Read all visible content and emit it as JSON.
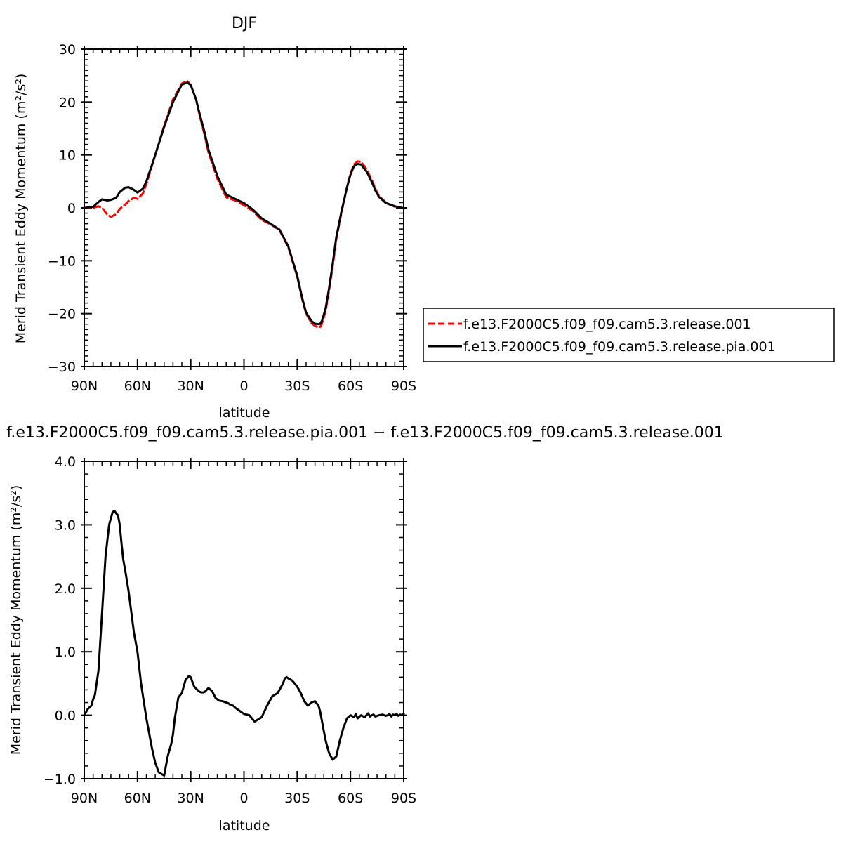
{
  "chart_data": [
    {
      "type": "line",
      "title": "DJF",
      "xlabel": "latitude",
      "ylabel": "Merid Transient Eddy Momentum (m²/s²)",
      "x_unit": "degrees latitude (positive = N, negative = S)",
      "xlim": [
        90,
        -90
      ],
      "ylim": [
        -30,
        30
      ],
      "x_ticks": [
        90,
        60,
        30,
        0,
        -30,
        -60,
        -90
      ],
      "x_tick_labels": [
        "90N",
        "60N",
        "30N",
        "0",
        "30S",
        "60S",
        "90S"
      ],
      "y_ticks": [
        -30,
        -20,
        -10,
        0,
        10,
        20,
        30
      ],
      "y_tick_labels": [
        "−30",
        "−20",
        "−10",
        "0",
        "10",
        "20",
        "30"
      ],
      "legend_position": "right",
      "series": [
        {
          "name": "f.e13.F2000C5.f09_f09.cam5.3.release.001",
          "color": "#ff0000",
          "dash": "dashed",
          "x": [
            90,
            85,
            82,
            80,
            77,
            75,
            72,
            70,
            67,
            65,
            62,
            60,
            57,
            55,
            50,
            45,
            40,
            35,
            32,
            30,
            27,
            25,
            22,
            20,
            15,
            10,
            5,
            0,
            -5,
            -10,
            -15,
            -20,
            -25,
            -30,
            -33,
            -35,
            -38,
            -40,
            -42,
            -43,
            -44,
            -46,
            -48,
            -50,
            -52,
            -55,
            -58,
            -60,
            -62,
            -64,
            -66,
            -68,
            -69,
            -70,
            -72,
            -74,
            -76,
            -78,
            -80,
            -85,
            -90
          ],
          "y": [
            0,
            0,
            0.3,
            0,
            -1.3,
            -1.7,
            -1.2,
            -0.2,
            0.6,
            1.3,
            1.9,
            1.7,
            2.7,
            4.5,
            10,
            15.5,
            20.5,
            23.5,
            24,
            23.2,
            20.5,
            17.5,
            13.5,
            10.5,
            5.5,
            2,
            1.4,
            0.5,
            -0.6,
            -2.3,
            -3.1,
            -4.2,
            -7.5,
            -13,
            -17.5,
            -20,
            -21.8,
            -22.3,
            -22.6,
            -22.5,
            -21.8,
            -19.5,
            -15.5,
            -11,
            -6,
            -0.8,
            3.8,
            6.5,
            8.2,
            8.8,
            8.7,
            7.8,
            7.3,
            6.6,
            5.3,
            3.6,
            2.3,
            1.6,
            1,
            0.2,
            0
          ]
        },
        {
          "name": "f.e13.F2000C5.f09_f09.cam5.3.release.pia.001",
          "color": "#000000",
          "dash": "solid",
          "x": [
            90,
            85,
            82,
            80,
            77,
            75,
            72,
            70,
            67,
            65,
            62,
            60,
            57,
            55,
            50,
            45,
            40,
            35,
            32,
            30,
            27,
            25,
            22,
            20,
            15,
            10,
            5,
            0,
            -5,
            -10,
            -15,
            -20,
            -25,
            -30,
            -33,
            -35,
            -38,
            -40,
            -42,
            -43,
            -44,
            -46,
            -48,
            -50,
            -52,
            -55,
            -58,
            -60,
            -62,
            -64,
            -66,
            -68,
            -69,
            -70,
            -72,
            -74,
            -76,
            -78,
            -80,
            -85,
            -90
          ],
          "y": [
            0,
            0.2,
            1.1,
            1.6,
            1.4,
            1.5,
            1.9,
            3.0,
            3.8,
            3.9,
            3.4,
            2.9,
            3.6,
            5,
            10,
            15.3,
            20,
            23.3,
            23.7,
            23.2,
            20.5,
            17.8,
            14,
            11,
            6,
            2.5,
            1.7,
            0.9,
            -0.3,
            -2.0,
            -3.0,
            -4.1,
            -7.3,
            -12.8,
            -17.3,
            -19.8,
            -21.4,
            -21.9,
            -22.0,
            -21.9,
            -21.3,
            -19,
            -15.1,
            -10.5,
            -5.6,
            -0.6,
            3.8,
            6.3,
            7.9,
            8.3,
            8.2,
            7.3,
            6.9,
            6.3,
            4.9,
            3.3,
            2.1,
            1.5,
            0.9,
            0.3,
            -0.1
          ]
        }
      ]
    },
    {
      "type": "line",
      "title": "f.e13.F2000C5.f09_f09.cam5.3.release.pia.001 − f.e13.F2000C5.f09_f09.cam5.3.release.001",
      "xlabel": "latitude",
      "ylabel": "Merid Transient Eddy Momentum (m²/s²)",
      "x_unit": "degrees latitude (positive = N, negative = S)",
      "xlim": [
        90,
        -90
      ],
      "ylim": [
        -1.0,
        4.0
      ],
      "x_ticks": [
        90,
        60,
        30,
        0,
        -30,
        -60,
        -90
      ],
      "x_tick_labels": [
        "90N",
        "60N",
        "30N",
        "0",
        "30S",
        "60S",
        "90S"
      ],
      "y_ticks": [
        -1.0,
        0.0,
        1.0,
        2.0,
        3.0,
        4.0
      ],
      "y_tick_labels": [
        "−1.0",
        "0.0",
        "1.0",
        "2.0",
        "3.0",
        "4.0"
      ],
      "series": [
        {
          "color": "#000000",
          "dash": "solid",
          "x": [
            90,
            88,
            86,
            85,
            84,
            82,
            80,
            78,
            76,
            74,
            73,
            72,
            71,
            70,
            69,
            68,
            67,
            65,
            62,
            60,
            58,
            55,
            52,
            50,
            48,
            45,
            43,
            42,
            41,
            40,
            39,
            37,
            35,
            33,
            31,
            30,
            29,
            28,
            27,
            26,
            25,
            24,
            23,
            22,
            20,
            18,
            16,
            14,
            12,
            10,
            9,
            8,
            7,
            6,
            5,
            3,
            0,
            -3,
            -6,
            -10,
            -13,
            -16,
            -19,
            -22,
            -23,
            -24,
            -25,
            -27,
            -28,
            -30,
            -32,
            -34,
            -36,
            -38,
            -40,
            -42,
            -43,
            -44,
            -46,
            -48,
            -50,
            -52,
            -54,
            -56,
            -58,
            -60,
            -62,
            -63,
            -64,
            -66,
            -68,
            -70,
            -71,
            -72,
            -73,
            -74,
            -76,
            -78,
            -80,
            -81,
            -82,
            -83,
            -84,
            -85,
            -86,
            -87,
            -88,
            -89,
            -90
          ],
          "y": [
            0,
            0.1,
            0.15,
            0.25,
            0.32,
            0.7,
            1.6,
            2.5,
            3.0,
            3.2,
            3.22,
            3.18,
            3.15,
            3.0,
            2.7,
            2.45,
            2.3,
            1.95,
            1.3,
            1.0,
            0.5,
            -0.05,
            -0.5,
            -0.75,
            -0.9,
            -0.95,
            -0.65,
            -0.55,
            -0.45,
            -0.3,
            -0.05,
            0.28,
            0.35,
            0.55,
            0.62,
            0.6,
            0.52,
            0.45,
            0.42,
            0.39,
            0.37,
            0.36,
            0.36,
            0.37,
            0.43,
            0.38,
            0.27,
            0.23,
            0.22,
            0.2,
            0.19,
            0.17,
            0.16,
            0.15,
            0.12,
            0.08,
            0.02,
            0.0,
            -0.1,
            -0.03,
            0.15,
            0.3,
            0.35,
            0.5,
            0.58,
            0.6,
            0.58,
            0.55,
            0.52,
            0.45,
            0.35,
            0.22,
            0.15,
            0.2,
            0.22,
            0.15,
            0.05,
            -0.1,
            -0.4,
            -0.6,
            -0.7,
            -0.65,
            -0.4,
            -0.2,
            -0.05,
            0.0,
            -0.03,
            0.02,
            -0.05,
            0.0,
            -0.03,
            0.03,
            -0.02,
            0.0,
            0.01,
            -0.02,
            0.0,
            0.01,
            -0.01,
            0.0,
            0.02,
            -0.02,
            0.01,
            0.0,
            0.02,
            -0.01,
            0.01,
            0.0,
            0.02
          ]
        }
      ]
    }
  ]
}
